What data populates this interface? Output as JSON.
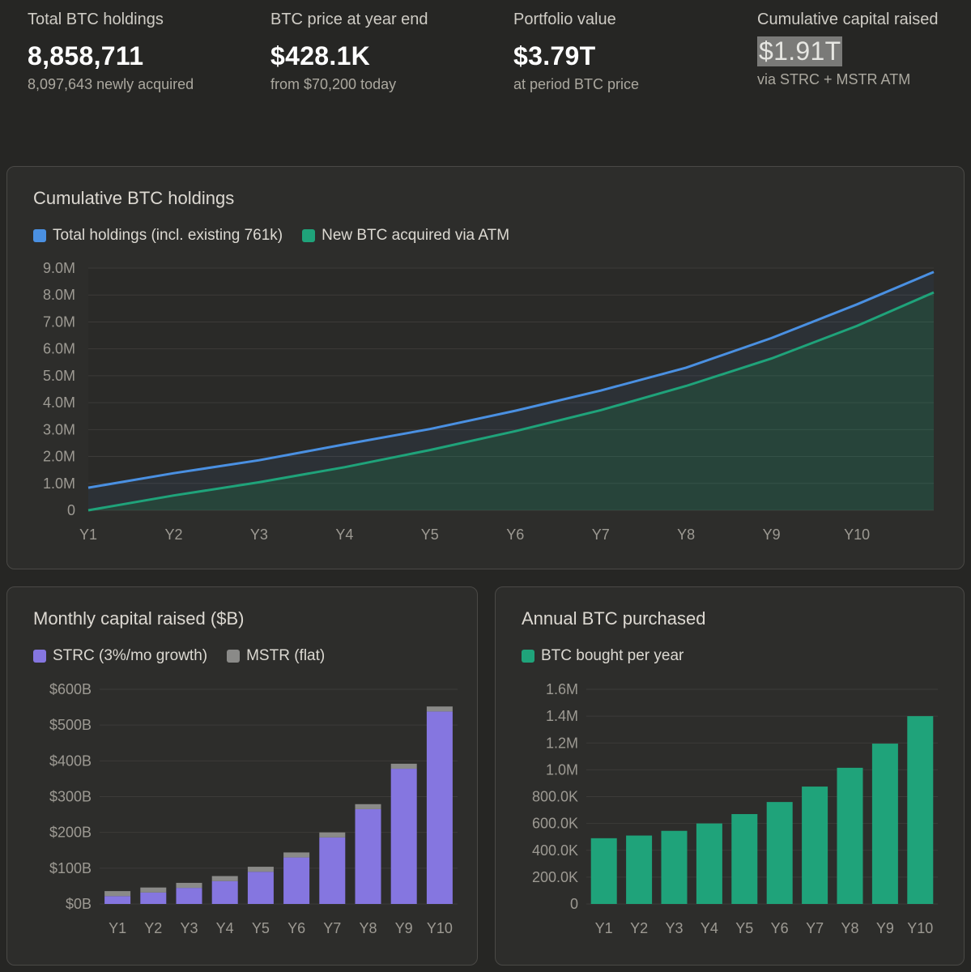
{
  "kpis": [
    {
      "label": "Total BTC holdings",
      "value": "8,858,711",
      "sub": "8,097,643 newly acquired"
    },
    {
      "label": "BTC price at year end",
      "value": "$428.1K",
      "sub": "from $70,200 today"
    },
    {
      "label": "Portfolio value",
      "value": "$3.79T",
      "sub": "at period BTC price"
    },
    {
      "label": "Cumulative capital raised",
      "value": "$1.91T",
      "sub": "via STRC + MSTR ATM"
    }
  ],
  "colors": {
    "total_line": "#4a90e2",
    "new_line": "#1fa37a",
    "strc": "#8576e0",
    "mstr": "#8a8a88",
    "annual": "#1fa37a"
  },
  "chart_data": [
    {
      "id": "cumulative",
      "type": "area",
      "title": "Cumulative BTC holdings",
      "legend": [
        "Total holdings (incl. existing 761k)",
        "New BTC acquired via ATM"
      ],
      "x": [
        "Y1",
        "Y2",
        "Y3",
        "Y4",
        "Y5",
        "Y6",
        "Y7",
        "Y8",
        "Y9",
        "Y10"
      ],
      "y_ticks": [
        "0",
        "1.0M",
        "2.0M",
        "3.0M",
        "4.0M",
        "5.0M",
        "6.0M",
        "7.0M",
        "8.0M",
        "9.0M"
      ],
      "ylim": [
        0,
        9000000
      ],
      "x_range": [
        0,
        9.9
      ],
      "series": [
        {
          "name": "Total holdings (incl. existing 761k)",
          "x": [
            0,
            1,
            2,
            3,
            4,
            5,
            6,
            7,
            8,
            9,
            9.9
          ],
          "values": [
            840000,
            1380000,
            1860000,
            2450000,
            3020000,
            3700000,
            4450000,
            5300000,
            6400000,
            7650000,
            8858711
          ]
        },
        {
          "name": "New BTC acquired via ATM",
          "x": [
            0,
            1,
            2,
            3,
            4,
            5,
            6,
            7,
            8,
            9,
            9.9
          ],
          "values": [
            0,
            550000,
            1040000,
            1600000,
            2240000,
            2940000,
            3720000,
            4620000,
            5640000,
            6850000,
            8097643
          ]
        }
      ]
    },
    {
      "id": "monthly",
      "type": "bar",
      "stacked": true,
      "title": "Monthly capital raised ($B)",
      "legend": [
        "STRC (3%/mo growth)",
        "MSTR (flat)"
      ],
      "categories": [
        "Y1",
        "Y2",
        "Y3",
        "Y4",
        "Y5",
        "Y6",
        "Y7",
        "Y8",
        "Y9",
        "Y10"
      ],
      "y_ticks": [
        "$0B",
        "$100B",
        "$200B",
        "$300B",
        "$400B",
        "$500B",
        "$600B"
      ],
      "ylim": [
        0,
        600
      ],
      "series": [
        {
          "name": "STRC (3%/mo growth)",
          "values": [
            22,
            32,
            45,
            64,
            90,
            130,
            186,
            265,
            378,
            538
          ]
        },
        {
          "name": "MSTR (flat)",
          "values": [
            14,
            14,
            14,
            14,
            14,
            14,
            14,
            14,
            14,
            14
          ]
        }
      ]
    },
    {
      "id": "annual",
      "type": "bar",
      "title": "Annual BTC purchased",
      "legend": [
        "BTC bought per year"
      ],
      "categories": [
        "Y1",
        "Y2",
        "Y3",
        "Y4",
        "Y5",
        "Y6",
        "Y7",
        "Y8",
        "Y9",
        "Y10"
      ],
      "y_ticks": [
        "0",
        "200.0K",
        "400.0K",
        "600.0K",
        "800.0K",
        "1.0M",
        "1.2M",
        "1.4M",
        "1.6M"
      ],
      "ylim": [
        0,
        1600000
      ],
      "series": [
        {
          "name": "BTC bought per year",
          "values": [
            490000,
            510000,
            545000,
            600000,
            670000,
            760000,
            875000,
            1015000,
            1195000,
            1400000
          ]
        }
      ]
    }
  ]
}
